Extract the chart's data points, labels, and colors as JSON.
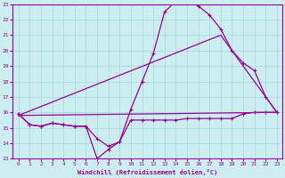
{
  "xlabel": "Windchill (Refroidissement éolien,°C)",
  "xlim": [
    -0.5,
    23.5
  ],
  "ylim": [
    13,
    23
  ],
  "yticks": [
    13,
    14,
    15,
    16,
    17,
    18,
    19,
    20,
    21,
    22,
    23
  ],
  "xticks": [
    0,
    1,
    2,
    3,
    4,
    5,
    6,
    7,
    8,
    9,
    10,
    11,
    12,
    13,
    14,
    15,
    16,
    17,
    18,
    19,
    20,
    21,
    22,
    23
  ],
  "bg_color": "#cceef0",
  "line_color": "#990099",
  "grid_color": "#aadddd",
  "curve1_x": [
    0,
    1,
    2,
    3,
    4,
    5,
    6,
    7,
    8,
    9,
    10,
    11,
    12,
    13,
    14,
    15,
    16,
    17,
    18,
    19,
    20,
    21,
    22,
    23
  ],
  "curve1_y": [
    15.9,
    15.2,
    15.1,
    15.3,
    15.2,
    15.1,
    15.1,
    13.0,
    13.6,
    14.1,
    15.5,
    15.5,
    15.5,
    15.5,
    15.5,
    15.6,
    15.6,
    15.6,
    15.6,
    15.6,
    15.9,
    16.0,
    16.0,
    16.0
  ],
  "curve2_x": [
    0,
    1,
    2,
    3,
    4,
    5,
    6,
    7,
    8,
    9,
    10,
    11,
    12,
    13,
    14,
    15,
    16,
    17,
    18,
    19,
    20,
    21,
    22,
    23
  ],
  "curve2_y": [
    15.9,
    15.2,
    15.1,
    15.3,
    15.2,
    15.1,
    15.1,
    14.3,
    13.8,
    14.1,
    16.2,
    18.0,
    19.8,
    22.5,
    23.2,
    23.2,
    22.9,
    22.3,
    21.4,
    20.0,
    19.2,
    18.7,
    17.0,
    16.0
  ],
  "curve3_x": [
    0,
    23
  ],
  "curve3_y": [
    15.8,
    16.0
  ],
  "curve4_x": [
    0,
    18,
    23
  ],
  "curve4_y": [
    15.8,
    21.0,
    16.0
  ]
}
